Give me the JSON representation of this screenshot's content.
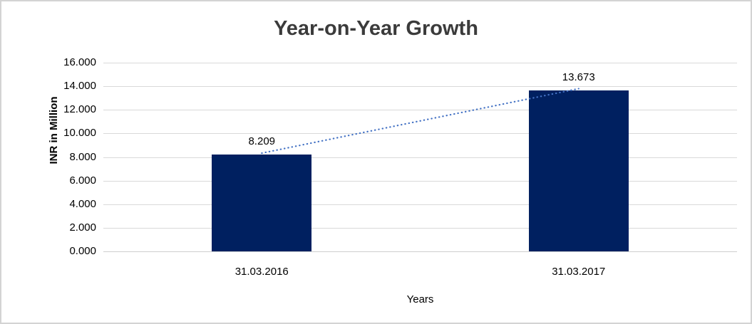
{
  "chart_data": {
    "type": "bar",
    "title": "Year-on-Year Growth",
    "categories": [
      "31.03.2016",
      "31.03.2017"
    ],
    "values": [
      8.209,
      13.673
    ],
    "value_labels": [
      "8.209",
      "13.673"
    ],
    "xlabel": "Years",
    "ylabel": "INR in Million",
    "ylim": [
      0,
      16
    ],
    "ytick_labels": [
      "0.000",
      "2.000",
      "4.000",
      "6.000",
      "8.000",
      "10.000",
      "12.000",
      "14.000",
      "16.000"
    ],
    "grid": true,
    "legend": false,
    "bar_color": "#002060",
    "trendline": {
      "show": true,
      "style": "dotted-round",
      "color": "#4472C4"
    },
    "gridline_color": "#d9d9d9",
    "title_color": "#3b3b3b",
    "background_color": "#ffffff",
    "border_color": "#d3d3d3"
  }
}
